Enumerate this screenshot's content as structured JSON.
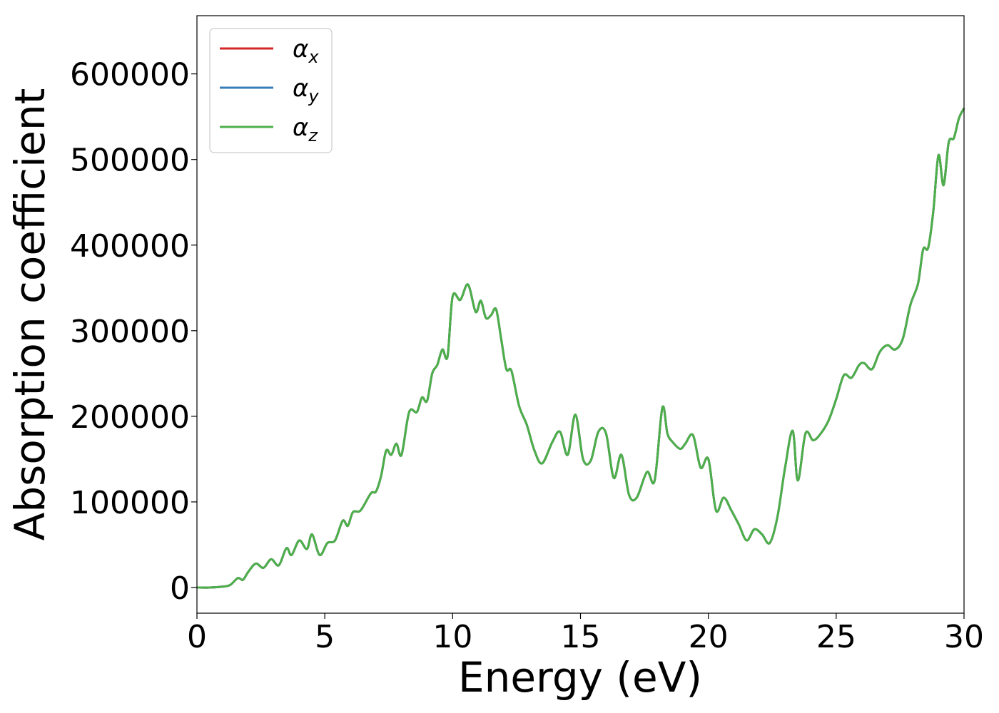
{
  "chart_data": {
    "type": "line",
    "xlabel": "Energy (eV)",
    "ylabel": "Absorption coefficient",
    "xlim": [
      0,
      30
    ],
    "ylim": [
      -30000,
      668000
    ],
    "xticks": [
      0,
      5,
      10,
      15,
      20,
      25,
      30
    ],
    "xtick_labels": [
      "0",
      "5",
      "10",
      "15",
      "20",
      "25",
      "30"
    ],
    "yticks": [
      0,
      100000,
      200000,
      300000,
      400000,
      500000,
      600000
    ],
    "ytick_labels": [
      "0",
      "100000",
      "200000",
      "300000",
      "400000",
      "500000",
      "600000"
    ],
    "grid": false,
    "legend_position": "top-left",
    "x": [
      0,
      0.5,
      1.0,
      1.3,
      1.6,
      1.8,
      2.0,
      2.3,
      2.6,
      2.9,
      3.2,
      3.5,
      3.7,
      4.0,
      4.3,
      4.5,
      4.8,
      5.1,
      5.4,
      5.7,
      5.9,
      6.1,
      6.4,
      6.8,
      7.0,
      7.2,
      7.4,
      7.6,
      7.8,
      8.0,
      8.3,
      8.6,
      8.8,
      9.0,
      9.2,
      9.4,
      9.6,
      9.8,
      10.0,
      10.3,
      10.6,
      10.9,
      11.1,
      11.3,
      11.5,
      11.7,
      11.9,
      12.1,
      12.3,
      12.6,
      12.9,
      13.2,
      13.5,
      13.9,
      14.2,
      14.5,
      14.8,
      15.1,
      15.4,
      15.7,
      16.0,
      16.3,
      16.6,
      16.9,
      17.2,
      17.6,
      17.9,
      18.2,
      18.4,
      18.6,
      18.9,
      19.1,
      19.4,
      19.7,
      20.0,
      20.3,
      20.6,
      20.9,
      21.2,
      21.5,
      21.8,
      22.1,
      22.4,
      22.7,
      23.0,
      23.3,
      23.5,
      23.8,
      24.1,
      24.4,
      24.7,
      25.0,
      25.3,
      25.6,
      25.9,
      26.1,
      26.4,
      26.7,
      27.0,
      27.3,
      27.6,
      27.9,
      28.2,
      28.4,
      28.6,
      28.8,
      29.0,
      29.2,
      29.4,
      29.6,
      29.8,
      30.0
    ],
    "series": [
      {
        "name": "α_x",
        "color": "#d62728",
        "values": [
          0,
          0,
          1000,
          3000,
          11000,
          9000,
          18000,
          28000,
          23000,
          33000,
          26000,
          46000,
          38000,
          55000,
          45000,
          62000,
          38000,
          52000,
          55000,
          78000,
          72000,
          88000,
          90000,
          110000,
          112000,
          130000,
          160000,
          155000,
          168000,
          155000,
          205000,
          205000,
          222000,
          218000,
          250000,
          260000,
          278000,
          270000,
          340000,
          336000,
          354000,
          322000,
          335000,
          315000,
          318000,
          325000,
          290000,
          255000,
          253000,
          212000,
          190000,
          160000,
          145000,
          170000,
          182000,
          155000,
          202000,
          150000,
          148000,
          182000,
          180000,
          128000,
          155000,
          108000,
          105000,
          135000,
          125000,
          210000,
          180000,
          170000,
          162000,
          168000,
          178000,
          140000,
          150000,
          90000,
          105000,
          90000,
          73000,
          55000,
          68000,
          62000,
          52000,
          82000,
          140000,
          183000,
          125000,
          180000,
          172000,
          180000,
          195000,
          220000,
          248000,
          245000,
          260000,
          262000,
          255000,
          275000,
          283000,
          278000,
          290000,
          330000,
          355000,
          395000,
          397000,
          440000,
          505000,
          470000,
          520000,
          525000,
          548000,
          560000
        ]
      },
      {
        "name": "α_y",
        "color": "#377eb8",
        "values": [
          0,
          0,
          1000,
          3000,
          11000,
          9000,
          18000,
          28000,
          23000,
          33000,
          26000,
          46000,
          38000,
          55000,
          45000,
          62000,
          38000,
          52000,
          55000,
          78000,
          72000,
          88000,
          90000,
          110000,
          112000,
          130000,
          160000,
          155000,
          168000,
          155000,
          205000,
          205000,
          222000,
          218000,
          250000,
          260000,
          278000,
          270000,
          340000,
          336000,
          354000,
          322000,
          335000,
          315000,
          318000,
          325000,
          290000,
          255000,
          253000,
          212000,
          190000,
          160000,
          145000,
          170000,
          182000,
          155000,
          202000,
          150000,
          148000,
          182000,
          180000,
          128000,
          155000,
          108000,
          105000,
          135000,
          125000,
          210000,
          180000,
          170000,
          162000,
          168000,
          178000,
          140000,
          150000,
          90000,
          105000,
          90000,
          73000,
          55000,
          68000,
          62000,
          52000,
          82000,
          140000,
          183000,
          125000,
          180000,
          172000,
          180000,
          195000,
          220000,
          248000,
          245000,
          260000,
          262000,
          255000,
          275000,
          283000,
          278000,
          290000,
          330000,
          355000,
          395000,
          397000,
          440000,
          505000,
          470000,
          520000,
          525000,
          548000,
          560000
        ]
      },
      {
        "name": "α_z",
        "color": "#4daf4a",
        "values": [
          0,
          0,
          1000,
          3000,
          11000,
          9000,
          18000,
          28000,
          23000,
          33000,
          26000,
          46000,
          38000,
          55000,
          45000,
          62000,
          38000,
          52000,
          55000,
          78000,
          72000,
          88000,
          90000,
          110000,
          112000,
          130000,
          160000,
          155000,
          168000,
          155000,
          205000,
          205000,
          222000,
          218000,
          250000,
          260000,
          278000,
          270000,
          340000,
          336000,
          354000,
          322000,
          335000,
          315000,
          318000,
          325000,
          290000,
          255000,
          253000,
          212000,
          190000,
          160000,
          145000,
          170000,
          182000,
          155000,
          202000,
          150000,
          148000,
          182000,
          180000,
          128000,
          155000,
          108000,
          105000,
          135000,
          125000,
          210000,
          180000,
          170000,
          162000,
          168000,
          178000,
          140000,
          150000,
          90000,
          105000,
          90000,
          73000,
          55000,
          68000,
          62000,
          52000,
          82000,
          140000,
          183000,
          125000,
          180000,
          172000,
          180000,
          195000,
          220000,
          248000,
          245000,
          260000,
          262000,
          255000,
          275000,
          283000,
          278000,
          290000,
          330000,
          355000,
          395000,
          397000,
          440000,
          505000,
          470000,
          520000,
          525000,
          548000,
          560000
        ]
      }
    ],
    "legend": [
      {
        "symbol": "α",
        "sub": "x",
        "color": "#d62728"
      },
      {
        "symbol": "α",
        "sub": "y",
        "color": "#377eb8"
      },
      {
        "symbol": "α",
        "sub": "z",
        "color": "#4daf4a"
      }
    ]
  }
}
